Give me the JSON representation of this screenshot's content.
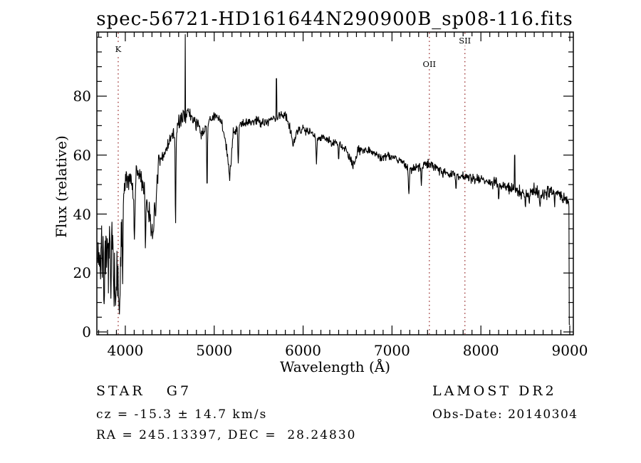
{
  "title": "spec-56721-HD161644N290900B_sp08-116.fits",
  "annotations": {
    "class_line": "STAR   G7",
    "cz_line": "cz = -15.3 ± 14.7 km/s",
    "radec_line": "RA = 245.13397, DEC =  28.24830",
    "survey": "LAMOST DR2",
    "obs_date": "Obs-Date: 20140304"
  },
  "colors": {
    "spectrum": "#000000",
    "frame": "#000000",
    "line_marker": "#a03a3a",
    "background": "#ffffff"
  },
  "chart_data": {
    "type": "line",
    "title": "spec-56721-HD161644N290900B_sp08-116.fits",
    "xlabel": "Wavelength (Å)",
    "ylabel": "Flux (relative)",
    "xlim": [
      3680,
      9040
    ],
    "ylim": [
      0,
      102
    ],
    "x_ticks": [
      4000,
      5000,
      6000,
      7000,
      8000,
      9000
    ],
    "y_ticks": [
      0,
      20,
      40,
      60,
      80
    ],
    "x_minor_step": 100,
    "y_minor_step": 5,
    "grid": false,
    "legend": "none",
    "line_markers": [
      {
        "label": "K",
        "wavelength": 3920,
        "label_top": 63
      },
      {
        "label": "OII",
        "wavelength": 7420,
        "label_top": 84
      },
      {
        "label": "SII",
        "wavelength": 7820,
        "label_top": 51
      }
    ],
    "spectrum": {
      "lambda_start": 3690,
      "lambda_end": 9002,
      "step": 4,
      "seed": 7,
      "envelope": [
        [
          3690,
          30
        ],
        [
          3720,
          25
        ],
        [
          3750,
          30
        ],
        [
          3780,
          22
        ],
        [
          3810,
          27
        ],
        [
          3845,
          33
        ],
        [
          3875,
          26
        ],
        [
          3905,
          20
        ],
        [
          3935,
          14
        ],
        [
          3955,
          34
        ],
        [
          3975,
          46
        ],
        [
          4000,
          50
        ],
        [
          4050,
          53
        ],
        [
          4101,
          48
        ],
        [
          4130,
          54
        ],
        [
          4180,
          52
        ],
        [
          4230,
          46
        ],
        [
          4270,
          40
        ],
        [
          4305,
          33
        ],
        [
          4335,
          44
        ],
        [
          4370,
          56
        ],
        [
          4420,
          59
        ],
        [
          4470,
          63
        ],
        [
          4520,
          66
        ],
        [
          4570,
          69
        ],
        [
          4620,
          72
        ],
        [
          4670,
          74
        ],
        [
          4720,
          74
        ],
        [
          4770,
          72
        ],
        [
          4820,
          70
        ],
        [
          4861,
          66
        ],
        [
          4900,
          70
        ],
        [
          4950,
          72
        ],
        [
          5010,
          73
        ],
        [
          5080,
          72
        ],
        [
          5140,
          62
        ],
        [
          5172,
          52
        ],
        [
          5210,
          67
        ],
        [
          5260,
          70
        ],
        [
          5320,
          71
        ],
        [
          5400,
          71
        ],
        [
          5480,
          72
        ],
        [
          5560,
          71
        ],
        [
          5640,
          72
        ],
        [
          5720,
          73
        ],
        [
          5790,
          74
        ],
        [
          5840,
          71
        ],
        [
          5892,
          64
        ],
        [
          5940,
          68
        ],
        [
          6000,
          69
        ],
        [
          6080,
          68
        ],
        [
          6160,
          66
        ],
        [
          6240,
          66
        ],
        [
          6320,
          64
        ],
        [
          6400,
          64
        ],
        [
          6480,
          62
        ],
        [
          6564,
          56
        ],
        [
          6620,
          62
        ],
        [
          6700,
          62
        ],
        [
          6800,
          61
        ],
        [
          6870,
          59
        ],
        [
          6950,
          60
        ],
        [
          7050,
          59
        ],
        [
          7140,
          57
        ],
        [
          7220,
          55
        ],
        [
          7300,
          56
        ],
        [
          7400,
          57
        ],
        [
          7500,
          56
        ],
        [
          7600,
          54
        ],
        [
          7700,
          53
        ],
        [
          7800,
          53
        ],
        [
          7900,
          52
        ],
        [
          8000,
          52
        ],
        [
          8100,
          51
        ],
        [
          8200,
          50
        ],
        [
          8300,
          49
        ],
        [
          8400,
          48
        ],
        [
          8500,
          47
        ],
        [
          8600,
          48
        ],
        [
          8700,
          47
        ],
        [
          8800,
          48
        ],
        [
          8900,
          46
        ],
        [
          8990,
          45
        ],
        [
          9002,
          45
        ]
      ],
      "noise_regions": [
        [
          3690,
          3960,
          13
        ],
        [
          3960,
          4380,
          6.5
        ],
        [
          4380,
          4900,
          3.8
        ],
        [
          4900,
          6000,
          2.8
        ],
        [
          6000,
          7000,
          2.2
        ],
        [
          7000,
          8100,
          2.4
        ],
        [
          8100,
          9002,
          3.2
        ]
      ],
      "dips": [
        [
          3762,
          8,
          6
        ],
        [
          3838,
          10,
          7
        ],
        [
          3890,
          7,
          8
        ],
        [
          3933,
          5,
          9
        ],
        [
          3970,
          14,
          6
        ],
        [
          4102,
          30,
          8
        ],
        [
          4227,
          26,
          6
        ],
        [
          4340,
          38,
          8
        ],
        [
          4565,
          33,
          6
        ],
        [
          4920,
          46,
          6
        ],
        [
          5270,
          56,
          7
        ],
        [
          6150,
          56,
          6
        ],
        [
          6400,
          57,
          5
        ],
        [
          7190,
          46,
          8
        ],
        [
          7330,
          49,
          6
        ],
        [
          7720,
          48,
          6
        ],
        [
          8200,
          44,
          6
        ],
        [
          8500,
          42,
          7
        ],
        [
          8545,
          43,
          6
        ],
        [
          8665,
          42,
          7
        ],
        [
          8830,
          42,
          5
        ]
      ],
      "spikes": [
        [
          4673,
          101
        ],
        [
          5700,
          86
        ],
        [
          8380,
          60
        ]
      ],
      "edge_drop": {
        "from": 8994,
        "flux": 2.5
      }
    }
  }
}
